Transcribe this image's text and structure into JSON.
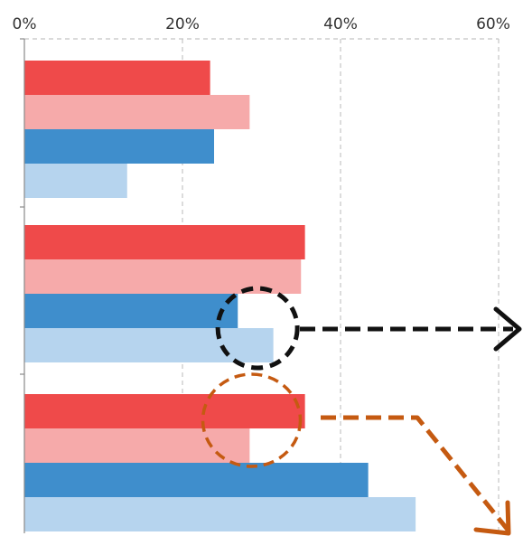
{
  "chart_data": {
    "type": "bar",
    "orientation": "horizontal",
    "x_ticks": [
      "0%",
      "20%",
      "40%",
      "60%"
    ],
    "xlim": [
      0,
      60
    ],
    "grid": true,
    "legend": "none",
    "groups": [
      {
        "values": [
          23.5,
          28.5,
          24,
          13
        ]
      },
      {
        "values": [
          35.5,
          35,
          27,
          31.5
        ]
      },
      {
        "values": [
          35.5,
          28.5,
          43.5,
          49.5
        ]
      }
    ],
    "series_colors": [
      "#ef4a4a",
      "#f6aaaa",
      "#3f8ecc",
      "#b6d4ee"
    ],
    "annotations": [
      {
        "type": "dashed-circle",
        "color": "#111111",
        "group": 2,
        "bars": [
          3,
          4
        ],
        "at_value": 29.5
      },
      {
        "type": "dashed-arrow",
        "color": "#111111",
        "direction": "right"
      },
      {
        "type": "dashed-circle",
        "color": "#c55a11",
        "group": 3,
        "bars": [
          1,
          2
        ],
        "at_value": 30
      },
      {
        "type": "dashed-arrow",
        "color": "#c55a11",
        "direction": "down-right"
      }
    ]
  }
}
